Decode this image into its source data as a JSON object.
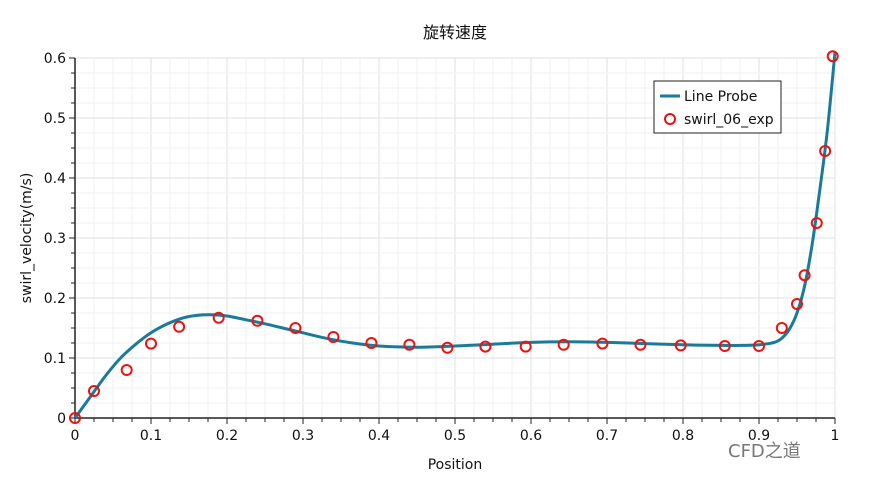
{
  "chart_data": {
    "type": "line",
    "title": "旋转速度",
    "xlabel": "Position",
    "ylabel": "swirl_velocity(m/s)",
    "xlim": [
      0,
      1
    ],
    "ylim": [
      0,
      0.6
    ],
    "xticks": [
      "0",
      "0.1",
      "0.2",
      "0.3",
      "0.4",
      "0.5",
      "0.6",
      "0.7",
      "0.8",
      "0.9",
      "1"
    ],
    "yticks": [
      "0",
      "0.1",
      "0.2",
      "0.3",
      "0.4",
      "0.5",
      "0.6"
    ],
    "grid": true,
    "legend_position": "top-right",
    "series": [
      {
        "name": "Line Probe",
        "style": "line",
        "color": "#1a7a9a",
        "x": [
          0,
          0.02,
          0.04,
          0.06,
          0.08,
          0.1,
          0.12,
          0.14,
          0.16,
          0.18,
          0.2,
          0.22,
          0.25,
          0.28,
          0.3,
          0.33,
          0.36,
          0.4,
          0.45,
          0.5,
          0.55,
          0.6,
          0.65,
          0.7,
          0.75,
          0.8,
          0.85,
          0.88,
          0.9,
          0.92,
          0.93,
          0.94,
          0.95,
          0.96,
          0.97,
          0.98,
          0.99,
          1.0
        ],
        "y": [
          0,
          0.035,
          0.07,
          0.1,
          0.123,
          0.142,
          0.156,
          0.166,
          0.171,
          0.172,
          0.17,
          0.165,
          0.157,
          0.148,
          0.142,
          0.133,
          0.126,
          0.12,
          0.118,
          0.12,
          0.123,
          0.126,
          0.127,
          0.126,
          0.124,
          0.122,
          0.121,
          0.121,
          0.122,
          0.126,
          0.133,
          0.148,
          0.175,
          0.22,
          0.29,
          0.38,
          0.48,
          0.61
        ]
      },
      {
        "name": "swirl_06_exp",
        "style": "marker",
        "color": "#ee1111",
        "x": [
          0,
          0.025,
          0.068,
          0.1,
          0.137,
          0.189,
          0.24,
          0.29,
          0.34,
          0.39,
          0.44,
          0.49,
          0.54,
          0.593,
          0.643,
          0.694,
          0.744,
          0.797,
          0.855,
          0.9,
          0.93,
          0.95,
          0.96,
          0.976,
          0.987,
          0.997
        ],
        "y": [
          0,
          0.045,
          0.08,
          0.124,
          0.152,
          0.167,
          0.162,
          0.15,
          0.135,
          0.125,
          0.122,
          0.117,
          0.119,
          0.119,
          0.122,
          0.124,
          0.122,
          0.121,
          0.12,
          0.12,
          0.15,
          0.19,
          0.238,
          0.325,
          0.445,
          0.603
        ]
      }
    ]
  },
  "watermark": "CFD之道"
}
